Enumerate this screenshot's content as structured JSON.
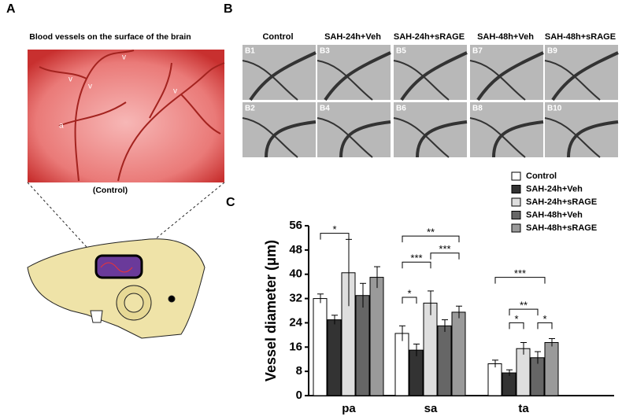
{
  "panel_a": {
    "label": "A",
    "title": "Blood vessels on the surface of the brain",
    "caption": "(Control)"
  },
  "panel_b": {
    "label": "B",
    "columns": [
      "Control",
      "SAH-24h+Veh",
      "SAH-24h+sRAGE",
      "SAH-48h+Veh",
      "SAH-48h+sRAGE"
    ],
    "tiles": [
      [
        "B1",
        "B3",
        "B5",
        "B7",
        "B9"
      ],
      [
        "B2",
        "B4",
        "B6",
        "B8",
        "B10"
      ]
    ]
  },
  "panel_c": {
    "label": "C"
  },
  "chart_data": {
    "type": "bar",
    "ylabel": "Vessel diameter (μm)",
    "categories": [
      "pa",
      "sa",
      "ta"
    ],
    "series": [
      {
        "name": "Control",
        "color": "#ffffff",
        "values": [
          32,
          20.5,
          10.5
        ],
        "errors": [
          1.5,
          2.5,
          1.2
        ]
      },
      {
        "name": "SAH-24h+Veh",
        "color": "#333333",
        "values": [
          25,
          15,
          7.5
        ],
        "errors": [
          1.5,
          2,
          1
        ]
      },
      {
        "name": "SAH-24h+sRAGE",
        "color": "#dedede",
        "values": [
          40.5,
          30.5,
          15.5
        ],
        "errors": [
          11,
          4,
          2
        ]
      },
      {
        "name": "SAH-48h+Veh",
        "color": "#666666",
        "values": [
          33,
          23,
          12.5
        ],
        "errors": [
          4,
          2,
          2
        ]
      },
      {
        "name": "SAH-48h+sRAGE",
        "color": "#9a9a9a",
        "values": [
          39,
          27.5,
          17.5
        ],
        "errors": [
          3.5,
          2,
          1.3
        ]
      }
    ],
    "ylim": [
      0,
      56
    ],
    "yticks": [
      0,
      8,
      16,
      24,
      32,
      40,
      48,
      56
    ],
    "annotations": [
      "*",
      "**",
      "***",
      "***",
      "*",
      "***",
      "**",
      "*",
      "*"
    ]
  }
}
